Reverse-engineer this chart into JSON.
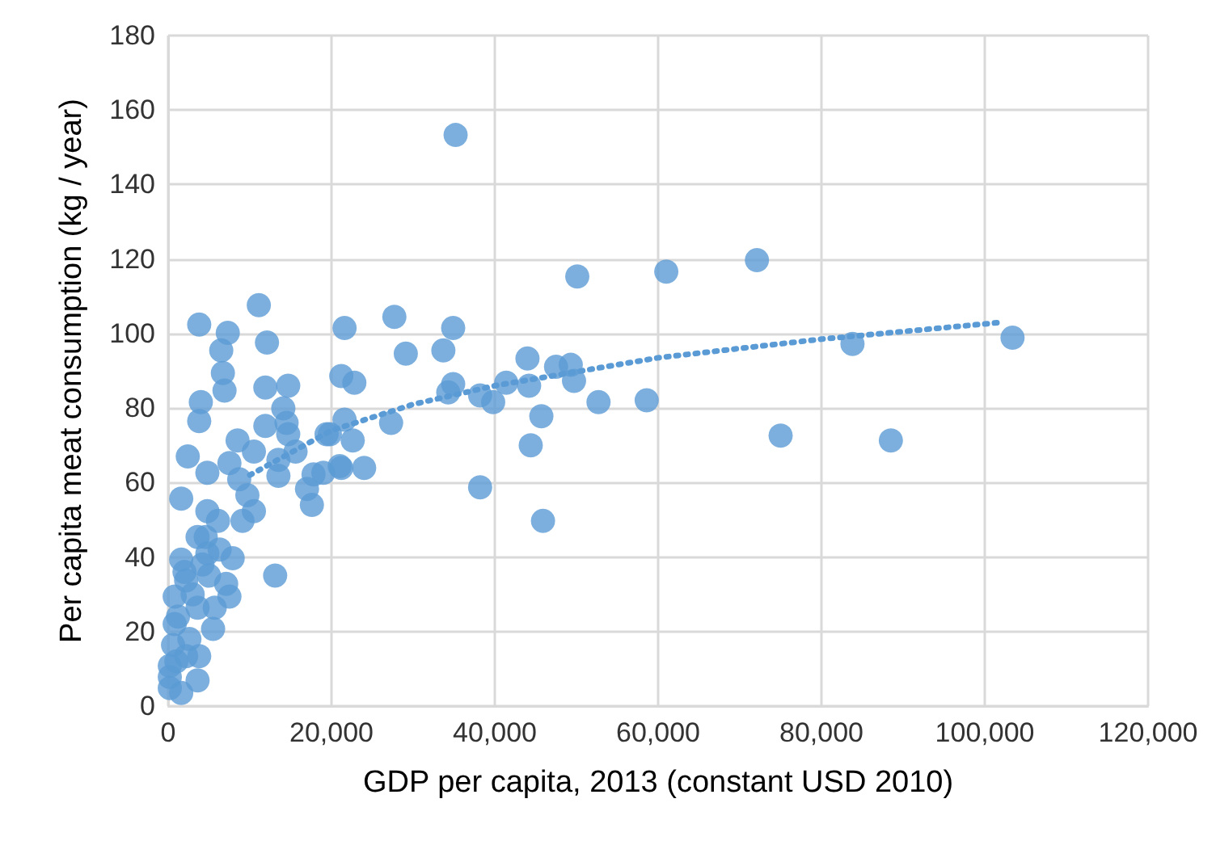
{
  "chart_data": {
    "type": "scatter",
    "xlabel": "GDP per capita, 2013 (constant USD 2010)",
    "ylabel": "Per capita meat consumption (kg / year)",
    "xlim": [
      0,
      120000
    ],
    "xticks": [
      0,
      {
        "value": 20000,
        "label": "20,000"
      },
      {
        "value": 40000,
        "label": "40,000"
      },
      {
        "value": 60000,
        "label": "60,000"
      },
      {
        "value": 80000,
        "label": "80,000"
      },
      {
        "value": 100000,
        "label": "100,000"
      },
      {
        "value": 120000,
        "label": "120,000"
      }
    ],
    "ylim": [
      0,
      180
    ],
    "yticks": [
      0,
      20,
      40,
      60,
      80,
      100,
      120,
      140,
      160,
      180
    ],
    "grid": true,
    "marker": "circle",
    "series": [
      {
        "color": "#5b9bd5",
        "x": [
          35200,
          21600,
          27700,
          34900,
          29100,
          33700,
          50100,
          61000,
          72100,
          21200,
          22800,
          44000,
          34900,
          34300,
          38200,
          39800,
          41400,
          44200,
          47500,
          49300,
          49700,
          52700,
          58600,
          45700,
          44400,
          38200,
          45900,
          27300,
          21600,
          19800,
          22600,
          21200,
          24000,
          19000,
          83800,
          103400,
          75000,
          88500,
          11100,
          3800,
          7300,
          12100,
          6500,
          6700,
          6900,
          11900,
          14700,
          4000,
          3800,
          14100,
          11900,
          14500,
          14700,
          19400,
          15600,
          8500,
          10500,
          2400,
          17800,
          17000,
          17600,
          13500,
          13500,
          21000,
          4800,
          7500,
          8700,
          9700,
          1600,
          10500,
          9100,
          4800,
          6100,
          4600,
          3600,
          7900,
          13100,
          1600,
          4800,
          7100,
          7500,
          800,
          5700,
          5500,
          800,
          2200,
          3600,
          600,
          3800,
          200,
          3600,
          1600,
          200,
          2200,
          200,
          2000,
          3000,
          1200,
          2600,
          5000,
          6300,
          1000,
          4200
        ],
        "values": [
          153.3,
          101.5,
          104.5,
          101.5,
          94.6,
          95.5,
          115.3,
          116.6,
          119.7,
          88.6,
          86.8,
          93.3,
          86.4,
          84.2,
          83.4,
          81.6,
          86.8,
          86.0,
          91.1,
          91.6,
          87.3,
          81.6,
          82.1,
          77.8,
          70.0,
          58.7,
          49.7,
          76.0,
          76.9,
          73.0,
          71.3,
          63.9,
          63.9,
          62.6,
          97.2,
          98.9,
          72.6,
          71.3,
          107.6,
          102.4,
          100.2,
          97.6,
          95.5,
          89.4,
          84.7,
          85.5,
          86.0,
          81.6,
          76.5,
          79.9,
          75.2,
          76.0,
          73.0,
          73.0,
          68.3,
          71.3,
          68.3,
          67.0,
          62.2,
          58.3,
          54.0,
          61.8,
          66.1,
          64.4,
          62.6,
          65.2,
          60.9,
          56.6,
          55.7,
          52.3,
          49.7,
          52.3,
          49.7,
          45.4,
          45.4,
          39.7,
          35.0,
          39.3,
          41.0,
          32.8,
          29.4,
          29.4,
          26.4,
          20.7,
          22.0,
          33.7,
          26.4,
          16.4,
          13.4,
          10.8,
          6.9,
          3.5,
          7.8,
          13.4,
          4.8,
          36.0,
          30.0,
          24.0,
          18.0,
          35.0,
          42.0,
          12.0,
          38.0
        ]
      },
      {
        "type": "line",
        "color": "#5b9bd5",
        "line_style": "dotted",
        "marker": "none",
        "x": [
          10000,
          20000,
          30000,
          40000,
          60000,
          80000,
          102000
        ],
        "values": [
          62,
          74,
          81,
          86,
          93.5,
          98.5,
          103
        ]
      }
    ]
  }
}
